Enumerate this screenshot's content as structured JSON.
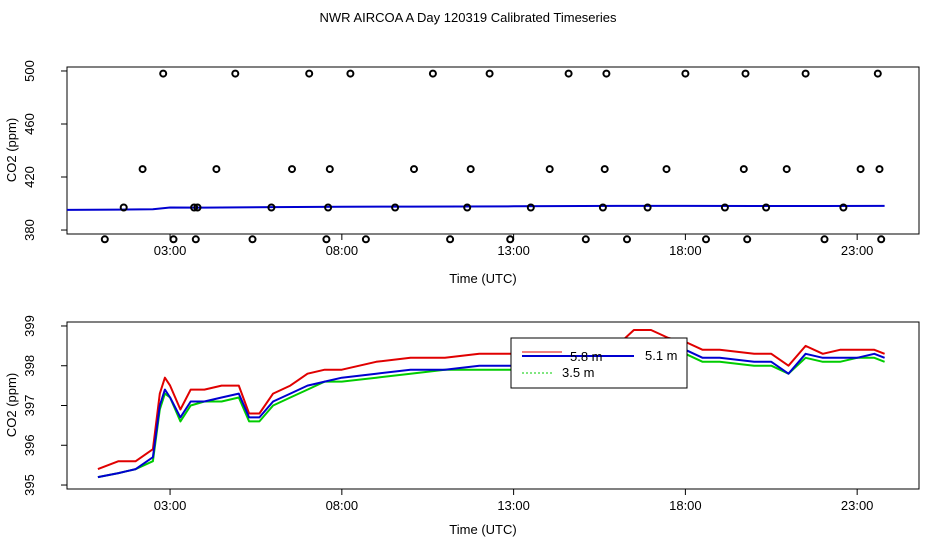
{
  "title": "NWR AIRCOA A  Day 120319  Calibrated Timeseries",
  "colors": {
    "calibrated_red": "#e00000",
    "calibrated_green": "#00cc00",
    "calibrated_blue": "#0000d0",
    "frame": "#000000"
  },
  "chart_data": [
    {
      "type": "scatter",
      "panel": "top",
      "xlabel": "Time (UTC)",
      "ylabel": "CO2 (ppm)",
      "xlim": [
        0.0,
        24.8
      ],
      "ylim": [
        377,
        503
      ],
      "xticks": [
        3,
        8,
        13,
        18,
        23
      ],
      "xtick_labels": [
        "03:00",
        "08:00",
        "13:00",
        "18:00",
        "23:00"
      ],
      "yticks": [
        380,
        420,
        460,
        500
      ],
      "ytick_labels": [
        "380",
        "420",
        "460",
        "500"
      ],
      "calibration_points": {
        "x": [
          1.1,
          1.65,
          2.2,
          2.8,
          3.1,
          3.7,
          3.75,
          3.8,
          4.35,
          4.9,
          5.4,
          5.95,
          6.55,
          7.05,
          7.55,
          7.6,
          7.65,
          8.25,
          8.7,
          9.55,
          10.1,
          10.65,
          11.15,
          11.65,
          11.75,
          12.3,
          12.9,
          13.5,
          14.05,
          14.6,
          15.1,
          15.6,
          15.65,
          15.7,
          16.3,
          16.9,
          17.45,
          18.0,
          18.6,
          19.15,
          19.7,
          19.75,
          19.8,
          20.35,
          20.95,
          21.5,
          22.05,
          22.6,
          23.1,
          23.6,
          23.65,
          23.7
        ],
        "y": [
          373,
          397,
          426,
          498,
          373,
          397,
          373,
          397,
          426,
          498,
          373,
          397,
          426,
          498,
          373,
          397,
          426,
          498,
          373,
          397,
          426,
          498,
          373,
          397,
          426,
          498,
          373,
          397,
          426,
          498,
          373,
          397,
          426,
          498,
          373,
          397,
          426,
          498,
          373,
          397,
          426,
          498,
          373,
          397,
          426,
          498,
          373,
          397,
          426,
          498,
          426,
          373
        ]
      },
      "series": [
        {
          "name": "calibrated",
          "color": "#0000d0",
          "x": [
            0.0,
            1.5,
            2.5,
            3.0,
            4.0,
            6.0,
            8.0,
            10.0,
            13.0,
            16.0,
            18.0,
            20.0,
            22.0,
            23.8
          ],
          "values": [
            395.2,
            395.4,
            395.7,
            397.0,
            396.9,
            397.3,
            397.6,
            397.7,
            397.9,
            398.2,
            398.2,
            398.1,
            398.1,
            398.2
          ]
        }
      ]
    },
    {
      "type": "line",
      "panel": "bottom",
      "xlabel": "Time (UTC)",
      "ylabel": "CO2 (ppm)",
      "xlim": [
        0.0,
        24.8
      ],
      "ylim": [
        394.9,
        399.1
      ],
      "xticks": [
        3,
        8,
        13,
        18,
        23
      ],
      "xtick_labels": [
        "03:00",
        "08:00",
        "13:00",
        "18:00",
        "23:00"
      ],
      "yticks": [
        395,
        396,
        397,
        398,
        399
      ],
      "ytick_labels": [
        "395",
        "396",
        "397",
        "398",
        "399"
      ],
      "legend": {
        "placement": "center-right",
        "entries": [
          {
            "label": "5.1 m",
            "color": "#0000d0",
            "style": "solid"
          },
          {
            "label": "3.5 m",
            "color": "#00cc00",
            "style": "dotted"
          },
          {
            "label": "5.8 m",
            "color": "#e00000",
            "style": "solid"
          }
        ]
      },
      "series": [
        {
          "name": "5.8 m",
          "color": "#e00000",
          "x": [
            0.9,
            1.5,
            2.0,
            2.5,
            2.7,
            2.85,
            3.0,
            3.3,
            3.6,
            4.0,
            4.5,
            5.0,
            5.3,
            5.6,
            6.0,
            6.5,
            7.0,
            7.5,
            8.0,
            9.0,
            10.0,
            11.0,
            12.0,
            13.0,
            14.0,
            15.0,
            16.0,
            16.5,
            17.0,
            17.5,
            18.0,
            18.5,
            19.0,
            20.0,
            20.5,
            21.0,
            21.5,
            22.0,
            22.5,
            23.0,
            23.5,
            23.8
          ],
          "values": [
            395.4,
            395.6,
            395.6,
            395.9,
            397.3,
            397.7,
            397.5,
            396.9,
            397.4,
            397.4,
            397.5,
            397.5,
            396.8,
            396.8,
            397.3,
            397.5,
            397.8,
            397.9,
            397.9,
            398.1,
            398.2,
            398.2,
            398.3,
            398.3,
            398.3,
            398.3,
            398.5,
            398.9,
            398.9,
            398.7,
            398.6,
            398.4,
            398.4,
            398.3,
            398.3,
            398.0,
            398.5,
            398.3,
            398.4,
            398.4,
            398.4,
            398.3
          ]
        },
        {
          "name": "3.5 m",
          "color": "#00cc00",
          "x": [
            0.9,
            1.5,
            2.0,
            2.5,
            2.7,
            2.85,
            3.0,
            3.3,
            3.6,
            4.0,
            4.5,
            5.0,
            5.3,
            5.6,
            6.0,
            6.5,
            7.0,
            7.5,
            8.0,
            9.0,
            10.0,
            11.0,
            12.0,
            13.0,
            14.0,
            15.0,
            16.0,
            16.5,
            17.0,
            17.5,
            18.0,
            18.5,
            19.0,
            20.0,
            20.5,
            21.0,
            21.5,
            22.0,
            22.5,
            23.0,
            23.5,
            23.8
          ],
          "values": [
            395.2,
            395.3,
            395.4,
            395.6,
            396.9,
            397.3,
            397.2,
            396.6,
            397.0,
            397.1,
            397.1,
            397.2,
            396.6,
            396.6,
            397.0,
            397.2,
            397.4,
            397.6,
            397.6,
            397.7,
            397.8,
            397.9,
            397.9,
            397.9,
            397.9,
            397.9,
            398.1,
            398.4,
            398.5,
            398.4,
            398.3,
            398.1,
            398.1,
            398.0,
            398.0,
            397.8,
            398.2,
            398.1,
            398.1,
            398.2,
            398.2,
            398.1
          ]
        },
        {
          "name": "5.1 m",
          "color": "#0000d0",
          "x": [
            0.9,
            1.5,
            2.0,
            2.5,
            2.7,
            2.85,
            3.0,
            3.3,
            3.6,
            4.0,
            4.5,
            5.0,
            5.3,
            5.6,
            6.0,
            6.5,
            7.0,
            7.5,
            8.0,
            9.0,
            10.0,
            11.0,
            12.0,
            13.0,
            14.0,
            15.0,
            16.0,
            16.5,
            17.0,
            17.5,
            18.0,
            18.5,
            19.0,
            20.0,
            20.5,
            21.0,
            21.5,
            22.0,
            22.5,
            23.0,
            23.5,
            23.8
          ],
          "values": [
            395.2,
            395.3,
            395.4,
            395.7,
            397.0,
            397.4,
            397.2,
            396.7,
            397.1,
            397.1,
            397.2,
            397.3,
            396.7,
            396.7,
            397.1,
            397.3,
            397.5,
            397.6,
            397.7,
            397.8,
            397.9,
            397.9,
            398.0,
            398.0,
            398.0,
            398.0,
            398.2,
            398.5,
            398.6,
            398.5,
            398.4,
            398.2,
            398.2,
            398.1,
            398.1,
            397.8,
            398.3,
            398.2,
            398.2,
            398.2,
            398.3,
            398.2
          ]
        }
      ]
    }
  ]
}
